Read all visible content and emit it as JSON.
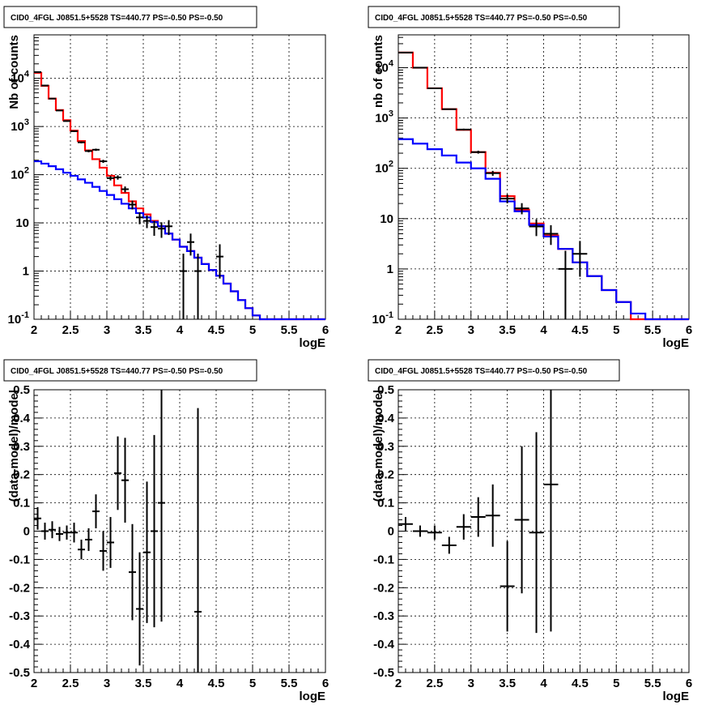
{
  "chart_data": [
    {
      "type": "line",
      "title": "CID0_4FGL J0851.5+5528 TS=440.77 PS=-0.50 PS=-0.50",
      "xlabel": "logE",
      "ylabel": "Nb of counts",
      "yscale": "log",
      "xlim": [
        2,
        6
      ],
      "ylim": [
        0.1,
        80000
      ],
      "x_ticks": [
        "2",
        "2.5",
        "3",
        "3.5",
        "4",
        "4.5",
        "5",
        "5.5",
        "6"
      ],
      "y_ticks": [
        "10^-1",
        "1",
        "10",
        "10^2",
        "10^3",
        "10^4"
      ],
      "grid": true,
      "series": [
        {
          "color": "#ff0000",
          "style": "step",
          "edges": [
            2.0,
            2.1,
            2.2,
            2.3,
            2.4,
            2.5,
            2.6,
            2.7,
            2.8,
            2.9,
            3.0,
            3.1,
            3.2,
            3.3,
            3.4,
            3.5,
            3.6,
            3.7,
            3.8,
            3.9,
            4.0,
            4.1,
            4.2,
            4.3,
            4.4,
            4.5,
            4.6,
            4.7,
            4.8,
            4.9,
            5.0,
            5.1,
            5.2,
            5.3,
            5.4,
            5.5,
            5.6,
            5.7,
            5.8,
            5.9,
            6.0
          ],
          "values": [
            13000,
            7000,
            3800,
            2200,
            1350,
            820,
            500,
            320,
            210,
            140,
            95,
            60,
            42,
            28,
            20,
            15,
            11,
            8.5,
            6,
            4.5,
            3.2,
            2.6,
            1.9,
            1.4,
            1.05,
            0.8,
            0.55,
            0.38,
            0.25,
            0.17,
            0.12,
            0.1,
            0.1,
            0.1,
            0.1,
            0.1,
            0.1,
            0.1,
            0.1,
            0.1
          ]
        },
        {
          "color": "#0000ff",
          "style": "step",
          "edges": [
            2.0,
            2.1,
            2.2,
            2.3,
            2.4,
            2.5,
            2.6,
            2.7,
            2.8,
            2.9,
            3.0,
            3.1,
            3.2,
            3.3,
            3.4,
            3.5,
            3.6,
            3.7,
            3.8,
            3.9,
            4.0,
            4.1,
            4.2,
            4.3,
            4.4,
            4.5,
            4.6,
            4.7,
            4.8,
            4.9,
            5.0,
            5.1,
            5.2,
            5.3,
            5.4,
            5.5,
            5.6,
            5.7,
            5.8,
            5.9,
            6.0
          ],
          "values": [
            190,
            170,
            150,
            130,
            110,
            95,
            80,
            68,
            56,
            46,
            38,
            31,
            25,
            20,
            16,
            13,
            10.5,
            8.5,
            6,
            4.5,
            3.2,
            2.6,
            1.9,
            1.4,
            1.05,
            0.8,
            0.55,
            0.38,
            0.25,
            0.17,
            0.12,
            0.1,
            0.1,
            0.1,
            0.1,
            0.1,
            0.1,
            0.1,
            0.1,
            0.1
          ]
        },
        {
          "color": "#000000",
          "style": "errorbar",
          "x": [
            2.05,
            2.15,
            2.25,
            2.35,
            2.45,
            2.55,
            2.65,
            2.75,
            2.85,
            2.95,
            3.05,
            3.15,
            3.25,
            3.35,
            3.45,
            3.55,
            3.65,
            3.75,
            3.85,
            4.05,
            4.15,
            4.25,
            4.55
          ],
          "xerr": 0.05,
          "y": [
            13500,
            7100,
            3800,
            2150,
            1300,
            800,
            470,
            310,
            330,
            190,
            85,
            88,
            50,
            24,
            13,
            11,
            8.2,
            7.6,
            8.5,
            1,
            4,
            1,
            2
          ],
          "ylo": [
            13380,
            7015,
            3738,
            2103,
            1264,
            772,
            448,
            292,
            312,
            176,
            76,
            79,
            43,
            19,
            9.4,
            7.8,
            5.4,
            4.9,
            5.6,
            0.1,
            2.1,
            0.1,
            0.7
          ],
          "yhi": [
            13620,
            7185,
            3862,
            2197,
            1336,
            828,
            492,
            328,
            348,
            204,
            94,
            97,
            57,
            29,
            16.6,
            14.2,
            11,
            10.3,
            11.4,
            2.3,
            6.0,
            2.3,
            3.6
          ]
        }
      ]
    },
    {
      "type": "line",
      "title": "CID0_4FGL J0851.5+5528 TS=440.77 PS=-0.50 PS=-0.50",
      "xlabel": "logE",
      "ylabel": "nb of counts",
      "yscale": "log",
      "xlim": [
        2,
        6
      ],
      "ylim": [
        0.1,
        45000
      ],
      "x_ticks": [
        "2",
        "2.5",
        "3",
        "3.5",
        "4",
        "4.5",
        "5",
        "5.5",
        "6"
      ],
      "y_ticks": [
        "10^-1",
        "1",
        "10",
        "10^2",
        "10^3",
        "10^4"
      ],
      "grid": true,
      "series": [
        {
          "color": "#ff0000",
          "style": "step",
          "edges": [
            2.0,
            2.2,
            2.4,
            2.6,
            2.8,
            3.0,
            3.2,
            3.4,
            3.6,
            3.8,
            4.0,
            4.2,
            4.4,
            4.6,
            4.8,
            5.0,
            5.2,
            5.4,
            5.6,
            5.8,
            6.0
          ],
          "values": [
            20000,
            10000,
            3900,
            1500,
            580,
            210,
            82,
            28,
            15,
            8,
            4.6,
            2.5,
            1.35,
            0.72,
            0.38,
            0.22,
            0.1,
            0.1,
            0.1,
            0.1
          ]
        },
        {
          "color": "#0000ff",
          "style": "step",
          "edges": [
            2.0,
            2.2,
            2.4,
            2.6,
            2.8,
            3.0,
            3.2,
            3.4,
            3.6,
            3.8,
            4.0,
            4.2,
            4.4,
            4.6,
            4.8,
            5.0,
            5.2,
            5.4,
            5.6,
            5.8,
            6.0
          ],
          "values": [
            380,
            310,
            240,
            180,
            130,
            100,
            62,
            22,
            14,
            7.5,
            4.4,
            2.5,
            1.35,
            0.72,
            0.38,
            0.22,
            0.13,
            0.1,
            0.1,
            0.1
          ]
        },
        {
          "color": "#000000",
          "style": "errorbar",
          "x": [
            2.1,
            2.3,
            2.5,
            2.7,
            2.9,
            3.1,
            3.3,
            3.5,
            3.7,
            3.9,
            4.1,
            4.3,
            4.5
          ],
          "xerr": 0.1,
          "y": [
            20000,
            10000,
            3900,
            1500,
            590,
            210,
            80,
            25,
            16,
            7,
            5,
            1,
            2
          ],
          "ylo": [
            19860,
            9900,
            3838,
            1461,
            566,
            196,
            71,
            20.2,
            12.2,
            4.5,
            3,
            0.1,
            0.7
          ],
          "yhi": [
            20140,
            10100,
            3962,
            1539,
            614,
            224,
            89,
            30.3,
            20.3,
            9.7,
            7.4,
            2.3,
            3.6
          ]
        }
      ]
    },
    {
      "type": "scatter",
      "title": "CID0_4FGL J0851.5+5528 TS=440.77 PS=-0.50 PS=-0.50",
      "xlabel": "logE",
      "ylabel": "(data-model)/model",
      "xlim": [
        2,
        6
      ],
      "ylim": [
        -0.5,
        0.5
      ],
      "x_ticks": [
        "2",
        "2.5",
        "3",
        "3.5",
        "4",
        "4.5",
        "5",
        "5.5",
        "6"
      ],
      "y_ticks": [
        "-0.5",
        "-0.4",
        "-0.3",
        "-0.2",
        "-0.1",
        "0",
        "0.1",
        "0.2",
        "0.3",
        "0.4",
        "0.5"
      ],
      "grid": true,
      "series": [
        {
          "color": "#000000",
          "style": "errorbar",
          "x": [
            2.05,
            2.15,
            2.25,
            2.35,
            2.45,
            2.55,
            2.65,
            2.75,
            2.85,
            2.95,
            3.05,
            3.15,
            3.25,
            3.35,
            3.45,
            3.55,
            3.65,
            3.75,
            4.25
          ],
          "xerr": 0.05,
          "y": [
            0.045,
            0.0,
            0.005,
            -0.01,
            -0.005,
            -0.005,
            -0.065,
            -0.03,
            0.07,
            -0.07,
            -0.04,
            0.205,
            0.18,
            -0.145,
            -0.275,
            -0.075,
            0.0,
            0.1,
            -0.285
          ],
          "err": [
            0.04,
            0.03,
            0.03,
            0.025,
            0.025,
            0.035,
            0.035,
            0.04,
            0.06,
            0.07,
            0.09,
            0.13,
            0.15,
            0.17,
            0.2,
            0.25,
            0.34,
            0.42,
            0.72
          ]
        }
      ]
    },
    {
      "type": "scatter",
      "title": "CID0_4FGL J0851.5+5528 TS=440.77 PS=-0.50 PS=-0.50",
      "xlabel": "logE",
      "ylabel": "(data-model)/model",
      "xlim": [
        2,
        6
      ],
      "ylim": [
        -0.5,
        0.5
      ],
      "x_ticks": [
        "2",
        "2.5",
        "3",
        "3.5",
        "4",
        "4.5",
        "5",
        "5.5",
        "6"
      ],
      "y_ticks": [
        "-0.5",
        "-0.4",
        "-0.3",
        "-0.2",
        "-0.1",
        "0",
        "0.1",
        "0.2",
        "0.3",
        "0.4",
        "0.5"
      ],
      "grid": true,
      "series": [
        {
          "color": "#000000",
          "style": "errorbar",
          "x": [
            2.1,
            2.3,
            2.5,
            2.7,
            2.9,
            3.1,
            3.3,
            3.5,
            3.7,
            3.9,
            4.1
          ],
          "xerr": 0.1,
          "y": [
            0.025,
            0.0,
            -0.005,
            -0.05,
            0.015,
            0.05,
            0.055,
            -0.195,
            0.04,
            -0.005,
            0.165
          ],
          "err": [
            0.025,
            0.02,
            0.025,
            0.03,
            0.045,
            0.07,
            0.11,
            0.16,
            0.26,
            0.355,
            0.52
          ]
        }
      ]
    }
  ]
}
